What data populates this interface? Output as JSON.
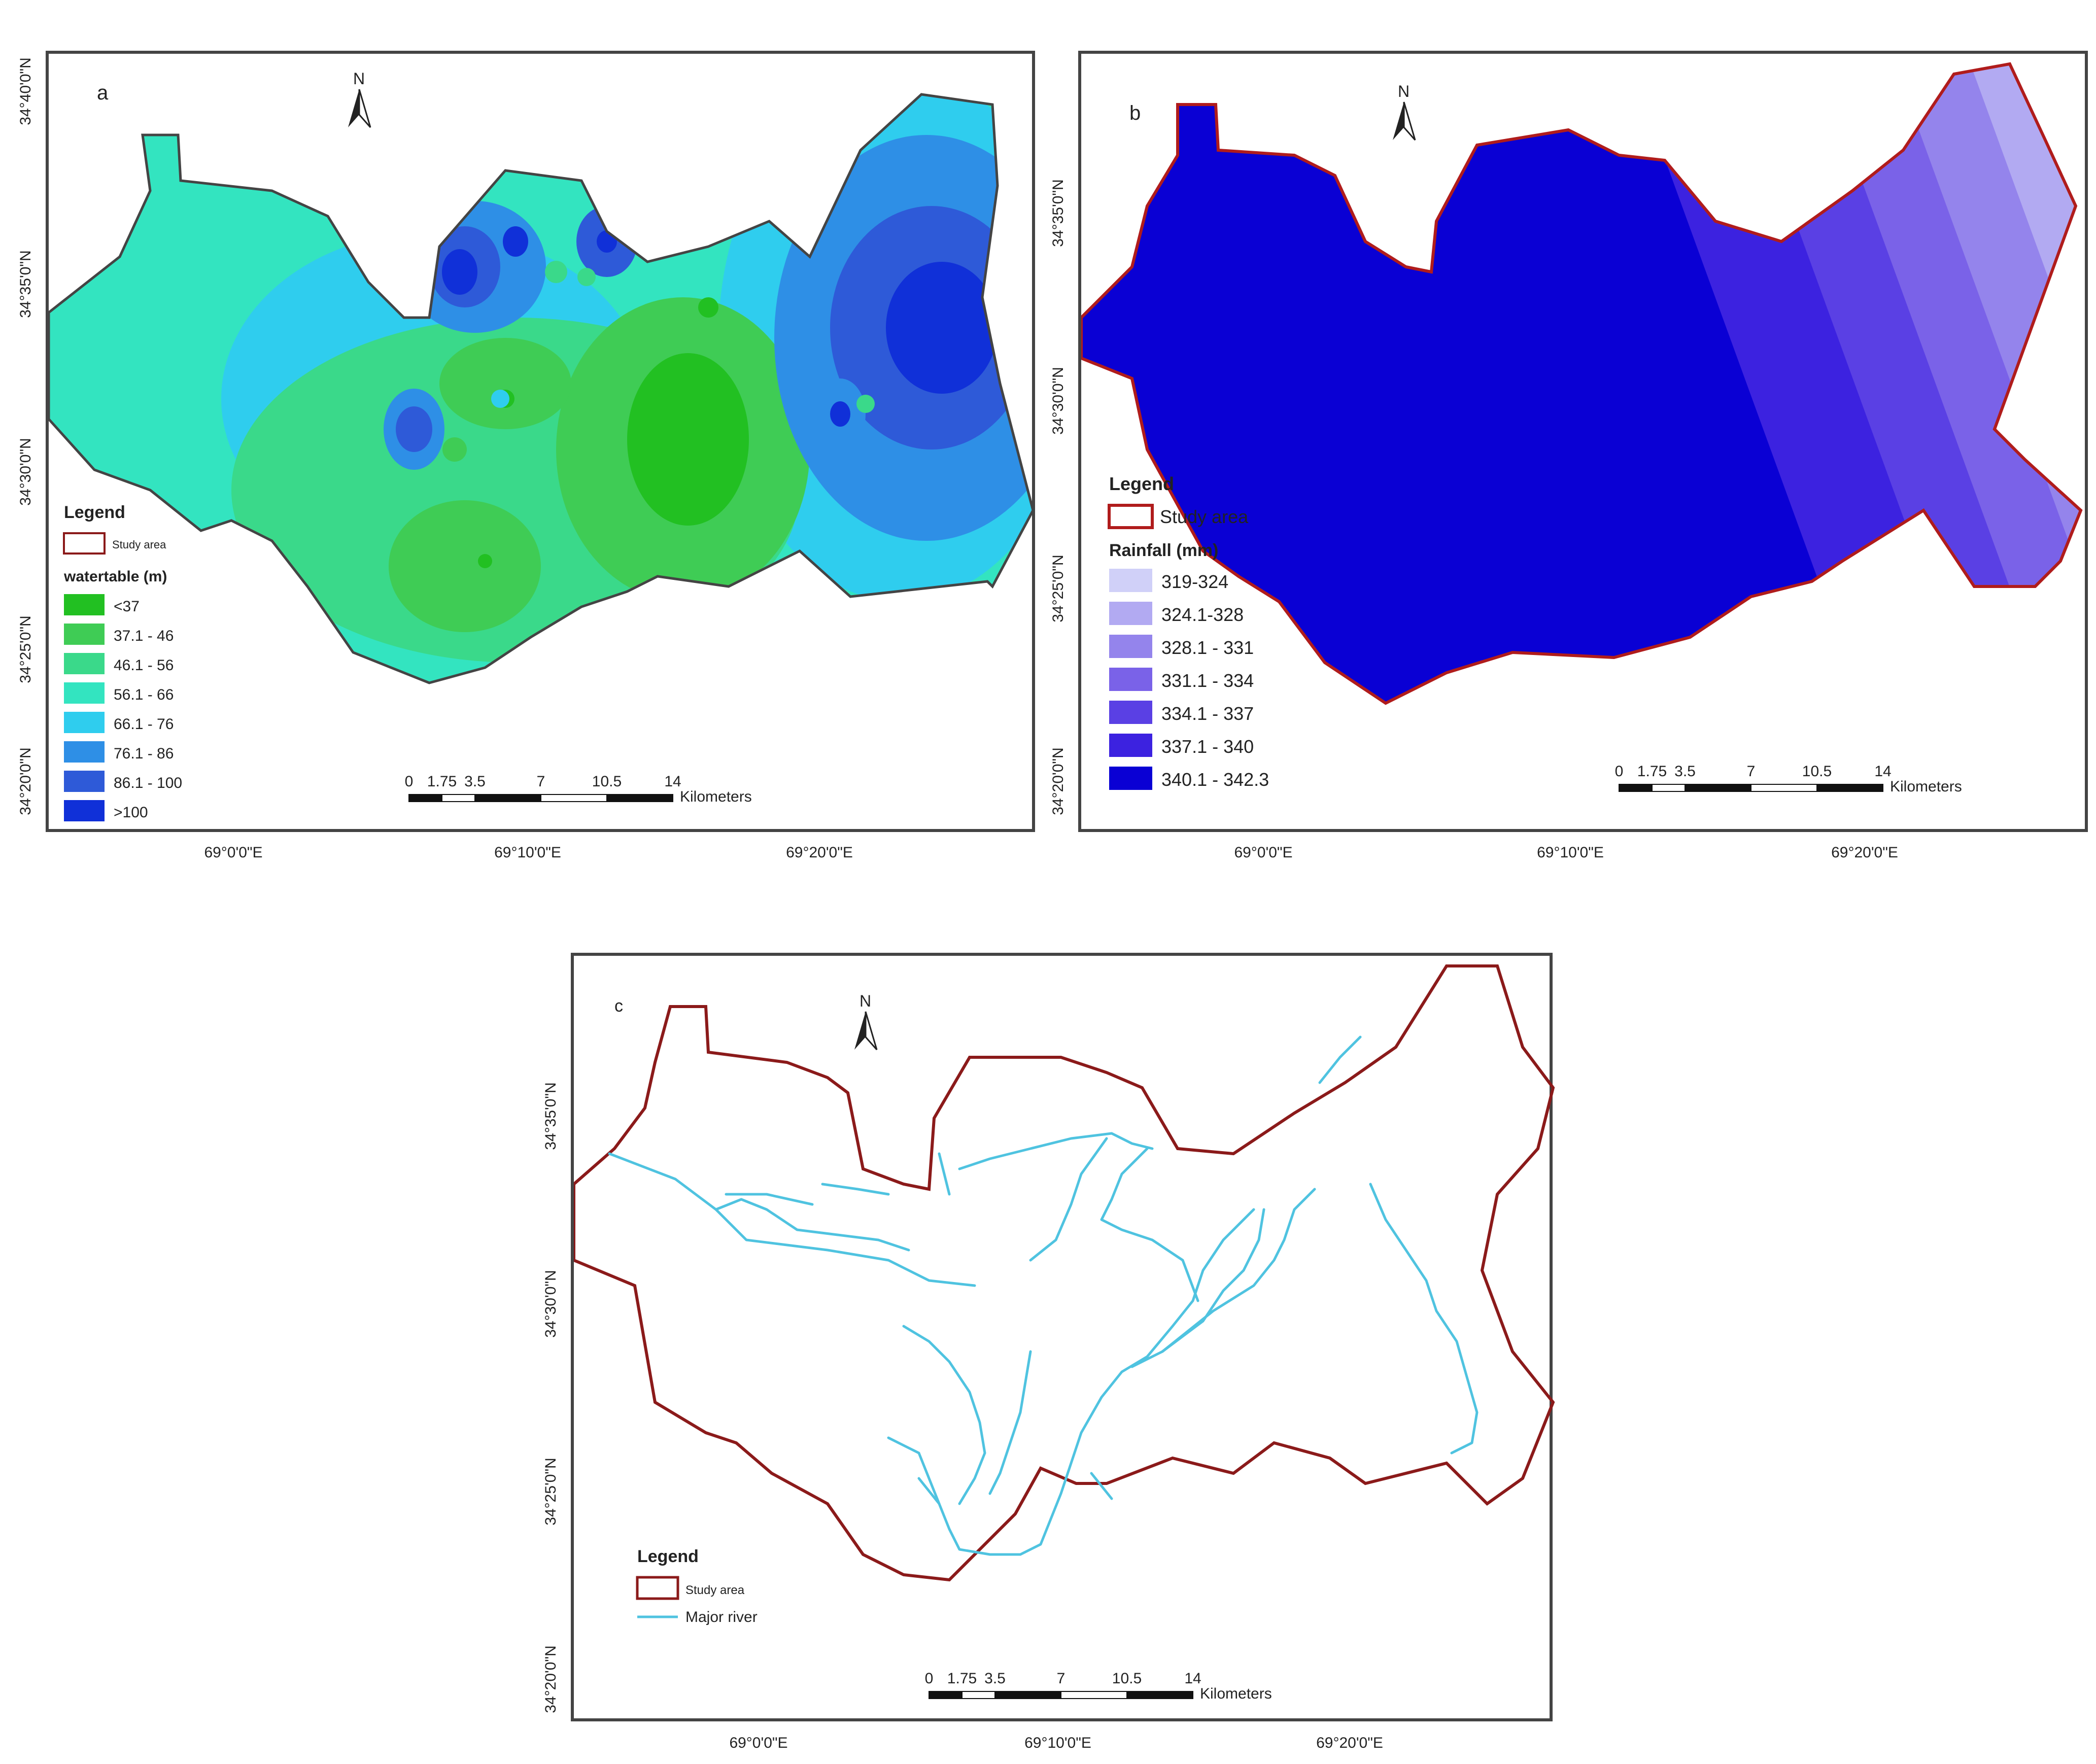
{
  "panels": [
    {
      "letter": "a",
      "north": "N",
      "lat_labels": [
        "34°40'0\"N",
        "34°35'0\"N",
        "34°30'0\"N",
        "34°25'0\"N",
        "34°20'0\"N"
      ],
      "lon_labels": [
        "69°0'0\"E",
        "69°10'0\"E",
        "69°20'0\"E"
      ],
      "legend": {
        "title": "Legend",
        "study_area": "Study area",
        "layer_title": "watertable (m)",
        "classes": [
          {
            "label": "<37",
            "color": "#22c022"
          },
          {
            "label": "37.1 - 46",
            "color": "#3fcc55"
          },
          {
            "label": "46.1 - 56",
            "color": "#3ad98a"
          },
          {
            "label": "56.1 - 66",
            "color": "#33e4c0"
          },
          {
            "label": "66.1 - 76",
            "color": "#2fcdee"
          },
          {
            "label": "76.1 - 86",
            "color": "#2e8fe6"
          },
          {
            "label": "86.1 - 100",
            "color": "#2e5ad8"
          },
          {
            "label": ">100",
            "color": "#1030d8"
          }
        ]
      },
      "scale": {
        "ticks": [
          "0",
          "1.75",
          "3.5",
          "7",
          "10.5",
          "14"
        ],
        "unit": "Kilometers"
      }
    },
    {
      "letter": "b",
      "north": "N",
      "lat_labels": [
        "34°35'0\"N",
        "34°30'0\"N",
        "34°25'0\"N",
        "34°20'0\"N"
      ],
      "lon_labels": [
        "69°0'0\"E",
        "69°10'0\"E",
        "69°20'0\"E"
      ],
      "legend": {
        "title": "Legend",
        "study_area": "Study area",
        "layer_title": "Rainfall (mm)",
        "classes": [
          {
            "label": "319-324",
            "color": "#d0d0f8"
          },
          {
            "label": "324.1-328",
            "color": "#b2aaf2"
          },
          {
            "label": "328.1 - 331",
            "color": "#9484ec"
          },
          {
            "label": "331.1 - 334",
            "color": "#7a62e8"
          },
          {
            "label": "334.1 - 337",
            "color": "#5a40e4"
          },
          {
            "label": "337.1 - 340",
            "color": "#3c22e0"
          },
          {
            "label": "340.1 - 342.3",
            "color": "#0a00d4"
          }
        ]
      },
      "scale": {
        "ticks": [
          "0",
          "1.75",
          "3.5",
          "7",
          "10.5",
          "14"
        ],
        "unit": "Kilometers"
      }
    },
    {
      "letter": "c",
      "north": "N",
      "lat_labels": [
        "34°35'0\"N",
        "34°30'0\"N",
        "34°25'0\"N",
        "34°20'0\"N"
      ],
      "lon_labels": [
        "69°0'0\"E",
        "69°10'0\"E",
        "69°20'0\"E"
      ],
      "legend": {
        "title": "Legend",
        "study_area": "Study area",
        "river": "Major river"
      },
      "scale": {
        "ticks": [
          "0",
          "1.75",
          "3.5",
          "7",
          "10.5",
          "14"
        ],
        "unit": "Kilometers"
      }
    }
  ],
  "colors": {
    "boundary": "#8b1a1a",
    "river": "#4fc3e0"
  }
}
